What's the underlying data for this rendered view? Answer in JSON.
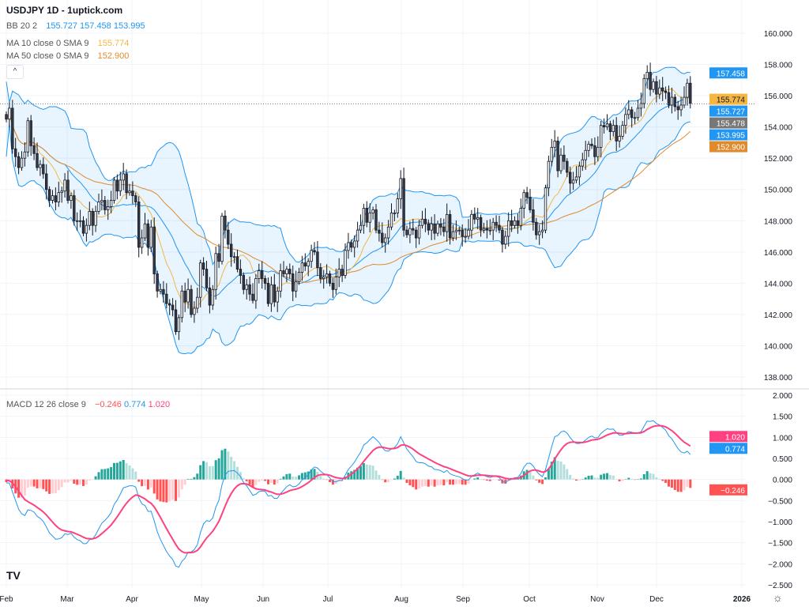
{
  "title": "USDJPY 1D - 1uptick.com",
  "legends": {
    "bb": {
      "label": "BB 20 2",
      "values": [
        "155.727",
        "157.458",
        "153.995"
      ]
    },
    "ma10": {
      "label": "MA 10 close 0 SMA 9",
      "value": "155.774"
    },
    "ma50": {
      "label": "MA 50 close 0 SMA 9",
      "value": "152.900"
    },
    "macd": {
      "label": "MACD 12 26 close 9",
      "values": [
        "−0.246",
        "0.774",
        "1.020"
      ]
    }
  },
  "icons": {
    "collapse": "chevron-up-icon",
    "logo": "TV",
    "settings": "gear-icon"
  },
  "logo_text": "TV",
  "colors": {
    "up": "#ffffff",
    "down": "#363a45",
    "bb": "#2196f3",
    "ma10": "#f5b642",
    "ma50": "#e08a2e",
    "macd": "#2196f3",
    "signal": "#ff4081",
    "hist_up": "#26a69a",
    "hist_up_fade": "#b2dfdb",
    "hist_dn": "#ff5252",
    "hist_dn_fade": "#ffcdd2"
  },
  "chart_data": [
    {
      "type": "candlestick",
      "title": "USDJPY 1D",
      "x_ticks": [
        "Feb",
        "Mar",
        "Apr",
        "May",
        "Jun",
        "Jul",
        "Aug",
        "Sep",
        "Oct",
        "Nov",
        "Dec",
        "2026"
      ],
      "y_ticks": [
        "160.000",
        "158.000",
        "156.000",
        "154.000",
        "152.000",
        "150.000",
        "148.000",
        "146.000",
        "144.000",
        "142.000",
        "140.000",
        "138.000"
      ],
      "ylim": [
        137,
        161
      ],
      "last_price": "155.478",
      "price_labels": [
        {
          "text": "157.458",
          "value": 157.458,
          "color": "#2196f3"
        },
        {
          "text": "155.774",
          "value": 155.774,
          "color": "#f5b642"
        },
        {
          "text": "155.727",
          "value": 155.727,
          "color": "#2196f3"
        },
        {
          "text": "155.478",
          "value": 155.478,
          "color": "#777777"
        },
        {
          "text": "153.995",
          "value": 153.995,
          "color": "#2196f3"
        },
        {
          "text": "152.900",
          "value": 152.9,
          "color": "#e08a2e"
        }
      ],
      "closes": [
        154.5,
        155.2,
        152.6,
        152.1,
        151.4,
        152.0,
        152.4,
        154.4,
        152.8,
        152.3,
        151.4,
        151.6,
        151.0,
        150.0,
        149.3,
        149.6,
        149.2,
        149.8,
        149.9,
        150.6,
        149.3,
        149.6,
        148.0,
        148.0,
        148.0,
        147.2,
        147.7,
        148.6,
        147.7,
        148.6,
        149.2,
        149.3,
        148.7,
        148.9,
        149.3,
        150.6,
        149.9,
        150.6,
        151.0,
        149.8,
        149.9,
        149.6,
        149.2,
        146.3,
        146.9,
        147.8,
        146.3,
        147.6,
        144.6,
        143.5,
        143.6,
        143.3,
        142.7,
        142.6,
        142.3,
        140.9,
        141.8,
        143.5,
        142.8,
        143.6,
        142.0,
        142.4,
        143.1,
        145.3,
        144.9,
        143.7,
        142.6,
        143.6,
        145.9,
        145.4,
        148.3,
        147.4,
        146.5,
        145.7,
        145.7,
        144.9,
        144.5,
        143.6,
        143.9,
        143.3,
        142.9,
        144.3,
        144.8,
        144.3,
        144.0,
        142.7,
        143.9,
        142.8,
        143.5,
        144.8,
        144.6,
        144.9,
        144.6,
        143.5,
        144.1,
        144.7,
        145.3,
        145.1,
        145.4,
        146.1,
        146.0,
        145.0,
        144.3,
        144.4,
        144.6,
        144.0,
        143.6,
        144.4,
        144.9,
        144.5,
        146.1,
        146.6,
        146.3,
        146.7,
        147.4,
        147.7,
        148.8,
        147.9,
        148.5,
        148.7,
        147.4,
        147.2,
        146.6,
        146.9,
        147.6,
        148.5,
        148.5,
        149.4,
        150.7,
        147.4,
        147.1,
        147.5,
        147.4,
        146.9,
        147.7,
        148.1,
        147.8,
        147.4,
        147.8,
        147.2,
        147.8,
        147.6,
        147.3,
        148.4,
        146.9,
        147.3,
        147.4,
        147.4,
        147.0,
        147.0,
        147.4,
        148.4,
        148.1,
        148.2,
        147.4,
        147.5,
        147.4,
        147.4,
        147.9,
        147.7,
        147.4,
        146.5,
        147.0,
        148.0,
        147.7,
        148.0,
        147.7,
        148.8,
        149.8,
        149.5,
        148.7,
        147.9,
        147.1,
        147.3,
        147.4,
        150.1,
        151.8,
        152.7,
        153.1,
        151.2,
        152.2,
        151.8,
        151.1,
        150.4,
        150.6,
        150.8,
        151.5,
        151.9,
        152.5,
        152.9,
        152.8,
        152.1,
        152.7,
        154.1,
        154.0,
        154.2,
        153.7,
        154.1,
        153.1,
        153.4,
        154.1,
        154.8,
        155.1,
        154.6,
        154.6,
        155.2,
        155.5,
        157.1,
        157.5,
        156.4,
        156.9,
        156.1,
        156.5,
        156.3,
        156.2,
        155.4,
        155.9,
        155.3,
        155.1,
        155.4,
        155.9,
        156.8,
        155.5
      ],
      "series": [
        {
          "name": "BB 20 2"
        },
        {
          "name": "MA 10"
        },
        {
          "name": "MA 50"
        }
      ]
    },
    {
      "type": "macd",
      "title": "MACD 12 26 close 9",
      "y_ticks": [
        "2.000",
        "1.500",
        "1.000",
        "0.500",
        "0.000",
        "−0.500",
        "−1.000",
        "−1.500",
        "−2.000",
        "−2.500"
      ],
      "ylim": [
        -2.5,
        2.0
      ],
      "value_labels": [
        {
          "text": "1.020",
          "value": 1.02,
          "color": "#ff4081"
        },
        {
          "text": "0.774",
          "value": 0.774,
          "color": "#2196f3"
        },
        {
          "text": "−0.246",
          "value": -0.246,
          "color": "#ff5252"
        }
      ]
    }
  ]
}
